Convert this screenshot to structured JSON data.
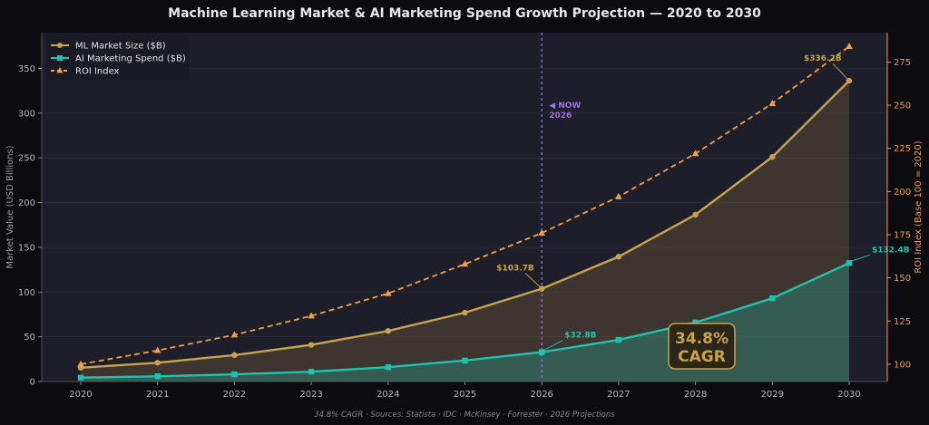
{
  "chart_data": {
    "type": "line",
    "title": "Machine Learning Market & AI Marketing Spend Growth Projection — 2020 to 2030",
    "x": [
      2020,
      2021,
      2022,
      2023,
      2024,
      2025,
      2026,
      2027,
      2028,
      2029,
      2030
    ],
    "xtick_labels": [
      "2020",
      "2021",
      "2022",
      "2023",
      "2024",
      "2025",
      "2026",
      "2027",
      "2028",
      "2029",
      "2030"
    ],
    "ylabel": "Market Value (USD Billions)",
    "ylim": [
      0,
      390
    ],
    "yticks": [
      0,
      50,
      100,
      150,
      200,
      250,
      300,
      350
    ],
    "y2label": "ROI Index (Base 100 = 2020)",
    "y2lim": [
      90,
      292
    ],
    "y2ticks": [
      100,
      125,
      150,
      175,
      200,
      225,
      250,
      275
    ],
    "series": [
      {
        "name": "ML Market Size ($B)",
        "axis": "left",
        "color": "#c9a24e",
        "marker": "circle",
        "style": "solid",
        "fill": true,
        "values": [
          15.4,
          21,
          29.5,
          41,
          56.5,
          77,
          103.7,
          139.5,
          186.5,
          251,
          336.2
        ]
      },
      {
        "name": "AI Marketing Spend ($B)",
        "axis": "left",
        "color": "#1fc2ac",
        "marker": "square",
        "style": "solid",
        "fill": true,
        "values": [
          4.3,
          5.8,
          8,
          11,
          16,
          23.5,
          32.8,
          46.5,
          66,
          93,
          132.4
        ]
      },
      {
        "name": "ROI Index",
        "axis": "right",
        "color": "#f0a040",
        "marker": "triangle",
        "style": "dashed",
        "fill": false,
        "values": [
          100,
          108,
          117,
          128,
          141,
          158,
          176,
          197,
          222,
          251,
          284
        ]
      }
    ],
    "annotations": [
      {
        "text": "$336.2B",
        "series": 0,
        "index": 10,
        "color": "#c9a24e"
      },
      {
        "text": "$103.7B",
        "series": 0,
        "index": 6,
        "color": "#c9a24e"
      },
      {
        "text": "$132.4B",
        "series": 1,
        "index": 10,
        "color": "#1fc2ac"
      },
      {
        "text": "$32.8B",
        "series": 1,
        "index": 6,
        "color": "#1fc2ac"
      }
    ],
    "now_marker": {
      "x": 2026,
      "label_line1": "◀ NOW",
      "label_line2": "2026",
      "color": "#9b72e0"
    },
    "callout": {
      "line1": "34.8%",
      "line2": "CAGR",
      "color": "#c9a24e"
    },
    "legend_placement": "top-left",
    "grid": true,
    "footnote": "34.8% CAGR  ·  Sources: Statista · IDC · McKinsey · Forrester · 2026 Projections"
  }
}
